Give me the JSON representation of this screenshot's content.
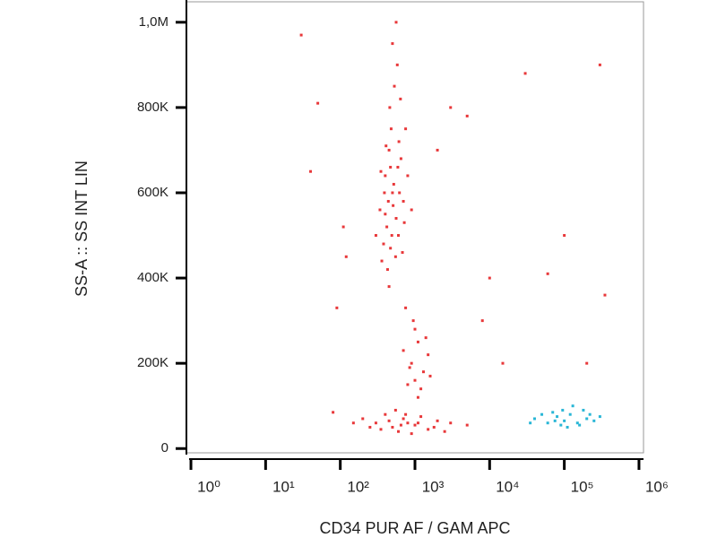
{
  "chart_data": {
    "type": "scatter",
    "x_label": "CD34 PUR AF / GAM APC",
    "y_label": "SS-A :: SS INT LIN",
    "x_scale": "log",
    "xlim": [
      0.87,
      1150000
    ],
    "xticks": [
      {
        "value": 1,
        "label": "10⁰"
      },
      {
        "value": 10,
        "label": "10¹"
      },
      {
        "value": 100,
        "label": "10²"
      },
      {
        "value": 1000,
        "label": "10³"
      },
      {
        "value": 10000,
        "label": "10⁴"
      },
      {
        "value": 100000,
        "label": "10⁵"
      },
      {
        "value": 1000000,
        "label": "10⁶"
      }
    ],
    "ylim": [
      -10000,
      1048000
    ],
    "yticks": [
      0,
      {
        "value": 200000,
        "label": "200K"
      },
      {
        "value": 400000,
        "label": "400K"
      },
      {
        "value": 600000,
        "label": "600K"
      },
      {
        "value": 800000,
        "label": "800K"
      },
      {
        "value": 1000000,
        "label": "1,0M"
      }
    ],
    "series": [
      {
        "color": "#e8383a",
        "x": [
          400,
          500,
          450,
          600,
          350,
          700,
          550,
          480,
          420,
          650,
          380,
          520,
          460,
          580,
          500,
          430,
          720,
          340,
          610,
          470,
          390,
          560,
          800,
          300,
          900,
          530,
          450,
          680,
          410,
          620,
          490,
          560,
          440,
          750,
          360,
          590,
          510,
          470,
          640,
          400,
          900,
          1100,
          1300,
          800,
          1000,
          1500,
          700,
          1200,
          950,
          1400,
          850,
          1100,
          1600,
          750,
          1000,
          300,
          500,
          700,
          1000,
          1500,
          2000,
          400,
          600,
          800,
          1200,
          250,
          900,
          550,
          1800,
          3000,
          450,
          650,
          350,
          1100,
          750,
          200,
          2500,
          5000,
          150,
          80,
          40,
          50,
          30,
          110,
          2000,
          3000,
          5000,
          10000,
          8000,
          90,
          100000,
          300000,
          350000,
          30000,
          200000,
          60000,
          15000,
          120
        ],
        "values": [
          550000,
          600000,
          700000,
          500000,
          650000,
          580000,
          450000,
          750000,
          520000,
          680000,
          480000,
          620000,
          800000,
          900000,
          950000,
          420000,
          530000,
          560000,
          720000,
          660000,
          600000,
          540000,
          640000,
          500000,
          560000,
          850000,
          380000,
          460000,
          710000,
          600000,
          500000,
          1000000,
          580000,
          750000,
          440000,
          660000,
          570000,
          470000,
          820000,
          640000,
          200000,
          250000,
          180000,
          150000,
          280000,
          220000,
          230000,
          140000,
          300000,
          260000,
          190000,
          120000,
          170000,
          330000,
          160000,
          60000,
          50000,
          70000,
          55000,
          45000,
          65000,
          80000,
          40000,
          60000,
          75000,
          50000,
          35000,
          90000,
          50000,
          60000,
          65000,
          55000,
          45000,
          60000,
          80000,
          70000,
          40000,
          55000,
          60000,
          85000,
          650000,
          810000,
          970000,
          520000,
          700000,
          800000,
          780000,
          400000,
          300000,
          330000,
          500000,
          900000,
          360000,
          880000,
          200000,
          410000,
          200000,
          450000
        ]
      },
      {
        "color": "#29b6d6",
        "x": [
          40000,
          60000,
          80000,
          100000,
          120000,
          150000,
          200000,
          90000,
          70000,
          180000,
          250000,
          50000,
          110000,
          130000,
          300000,
          35000,
          160000,
          75000,
          220000,
          95000
        ],
        "values": [
          70000,
          60000,
          75000,
          65000,
          80000,
          60000,
          70000,
          55000,
          85000,
          90000,
          65000,
          80000,
          50000,
          100000,
          75000,
          60000,
          55000,
          65000,
          80000,
          90000
        ]
      }
    ]
  }
}
